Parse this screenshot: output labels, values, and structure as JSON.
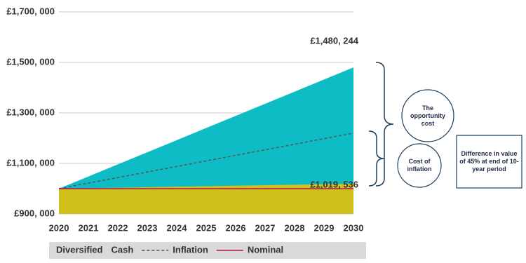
{
  "chart_data": {
    "type": "area",
    "x": [
      2020,
      2021,
      2022,
      2023,
      2024,
      2025,
      2026,
      2027,
      2028,
      2029,
      2030
    ],
    "xlim": [
      2020,
      2030
    ],
    "ylim": [
      900000,
      1700000
    ],
    "yticks": [
      {
        "value": 900000,
        "label": "£900, 000"
      },
      {
        "value": 1100000,
        "label": "£1,100, 000"
      },
      {
        "value": 1300000,
        "label": "£1,300, 000"
      },
      {
        "value": 1500000,
        "label": "£1,500, 000"
      },
      {
        "value": 1700000,
        "label": "£1,700, 000"
      }
    ],
    "grid": true,
    "series": [
      {
        "name": "Diversified",
        "color": "#0dbcc4",
        "kind": "area",
        "values": [
          1000000,
          1048024,
          1096049,
          1144073,
          1192098,
          1240122,
          1288146,
          1336171,
          1384195,
          1432220,
          1480244
        ],
        "value_labels": [
          null,
          null,
          null,
          null,
          null,
          null,
          null,
          null,
          null,
          null,
          "£1,480, 244"
        ]
      },
      {
        "name": "Cash",
        "color": "#cfc01c",
        "kind": "area",
        "values": [
          1000000,
          1001954,
          1003907,
          1005861,
          1007814,
          1009768,
          1011722,
          1013675,
          1015629,
          1017582,
          1019536
        ],
        "value_labels": [
          null,
          null,
          null,
          null,
          null,
          null,
          null,
          null,
          null,
          null,
          "£1,019, 536"
        ]
      },
      {
        "name": "Inflation",
        "color": "#555555",
        "kind": "dashed",
        "values": [
          1000000,
          1022000,
          1044000,
          1066000,
          1088000,
          1110000,
          1132000,
          1154000,
          1176000,
          1198000,
          1220000
        ]
      },
      {
        "name": "Nominal",
        "color": "#b5124e",
        "kind": "line",
        "values": [
          1000000,
          1000000,
          1000000,
          1000000,
          1000000,
          1000000,
          1000000,
          1000000,
          1000000,
          1000000,
          1000000
        ]
      }
    ],
    "annotations": [
      "The opportunity cost",
      "Cost of inflation",
      "Difference in value of 45% at end of 10-year period"
    ]
  }
}
